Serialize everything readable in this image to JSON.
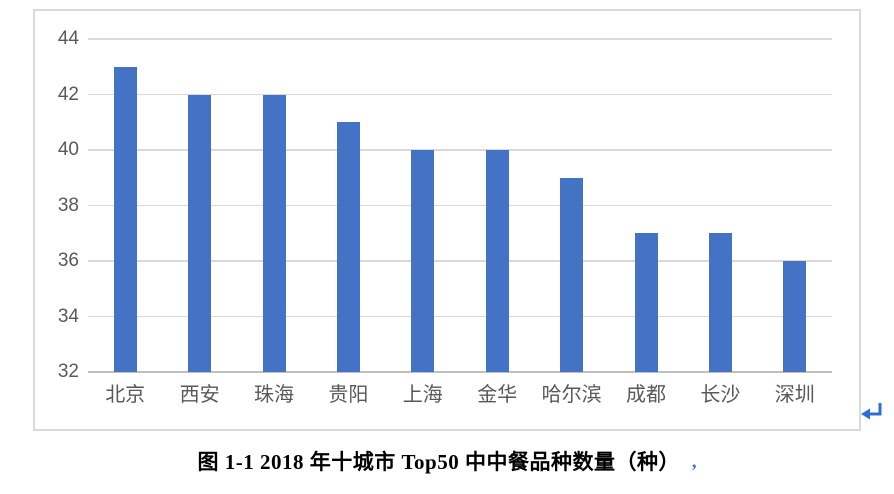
{
  "chart_data": {
    "type": "bar",
    "categories": [
      "北京",
      "西安",
      "珠海",
      "贵阳",
      "上海",
      "金华",
      "哈尔滨",
      "成都",
      "长沙",
      "深圳"
    ],
    "values": [
      43,
      42,
      42,
      41,
      40,
      40,
      39,
      37,
      37,
      36
    ],
    "title": "",
    "xlabel": "",
    "ylabel": "",
    "ylim": [
      32,
      44
    ],
    "yticks": [
      44,
      42,
      40,
      38,
      36,
      34,
      32
    ],
    "grid": true,
    "legend": "none",
    "bar_color": "#4472C4",
    "gridline_color": "#D9D9D9",
    "axis_line_color": "#BFBFBF",
    "tick_label_color": "#595959",
    "frame_border_color": "#D9D9D9"
  },
  "caption": {
    "label": "图 1-1",
    "text": "图 1-1  2018 年十城市 Top50 中中餐品种数量（种）",
    "color": "#000000"
  },
  "word_marks": {
    "paragraph_return_glyph": "↵",
    "paragraph_return_color": "#2E6FD0",
    "caption_end_glyph": ",",
    "caption_end_color": "#2E6FD0"
  }
}
